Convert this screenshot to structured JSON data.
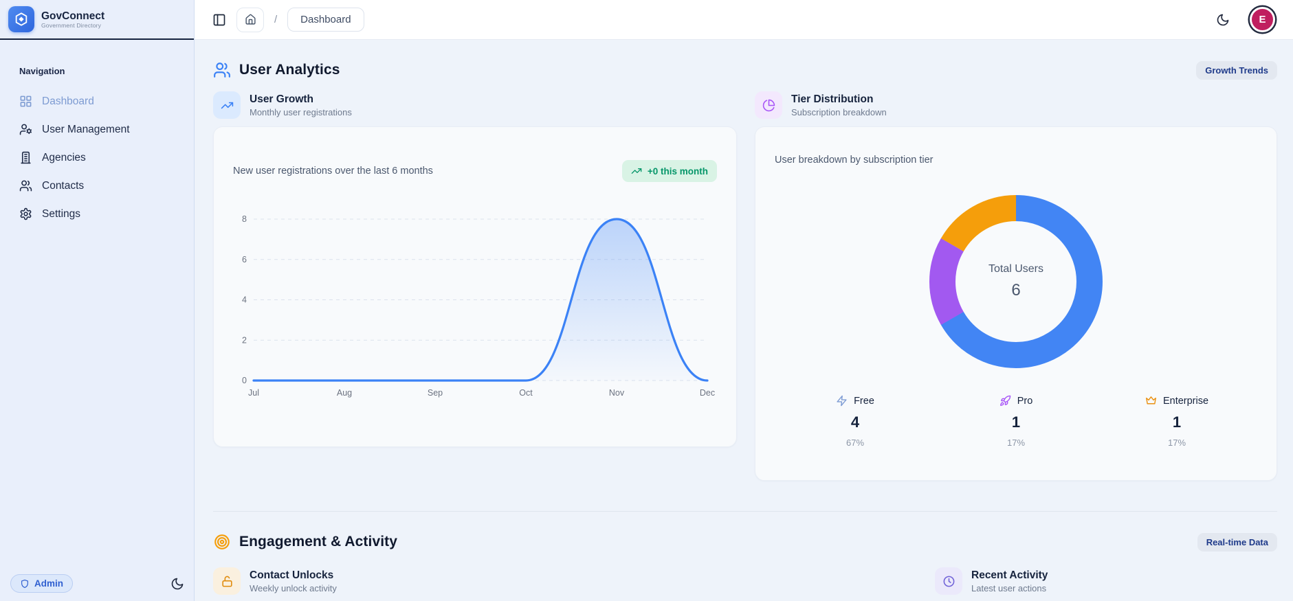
{
  "brand": {
    "name": "GovConnect",
    "tagline": "Government Directory"
  },
  "sidebar": {
    "nav_label": "Navigation",
    "items": [
      {
        "label": "Dashboard",
        "icon": "layout-grid",
        "active": true
      },
      {
        "label": "User Management",
        "icon": "user-cog",
        "active": false
      },
      {
        "label": "Agencies",
        "icon": "building",
        "active": false
      },
      {
        "label": "Contacts",
        "icon": "users",
        "active": false
      },
      {
        "label": "Settings",
        "icon": "gear",
        "active": false
      }
    ],
    "role_badge": "Admin"
  },
  "topbar": {
    "breadcrumb_current": "Dashboard",
    "avatar_initial": "E"
  },
  "analytics": {
    "title": "User Analytics",
    "badge": "Growth Trends",
    "user_growth": {
      "title": "User Growth",
      "subtitle": "Monthly user registrations",
      "description": "New user registrations over the last 6 months",
      "trend_badge": "+0 this month"
    },
    "tier_distribution": {
      "title": "Tier Distribution",
      "subtitle": "Subscription breakdown",
      "description": "User breakdown by subscription tier",
      "center_label": "Total Users",
      "center_value": "6",
      "tiers": [
        {
          "label": "Free",
          "value": "4",
          "percent": "67%",
          "icon": "zap",
          "icon_color": "#7e9cd4"
        },
        {
          "label": "Pro",
          "value": "1",
          "percent": "17%",
          "icon": "rocket",
          "icon_color": "#a855f7"
        },
        {
          "label": "Enterprise",
          "value": "1",
          "percent": "17%",
          "icon": "crown",
          "icon_color": "#ea9010"
        }
      ]
    }
  },
  "engagement": {
    "title": "Engagement & Activity",
    "badge": "Real-time Data",
    "contact_unlocks": {
      "title": "Contact Unlocks",
      "subtitle": "Weekly unlock activity"
    },
    "recent_activity": {
      "title": "Recent Activity",
      "subtitle": "Latest user actions"
    }
  },
  "chart_data": [
    {
      "type": "line",
      "title": "User Growth",
      "x": [
        "Jul",
        "Aug",
        "Sep",
        "Oct",
        "Nov",
        "Dec"
      ],
      "series": [
        {
          "name": "registrations",
          "values": [
            0,
            0,
            0,
            0,
            8,
            0
          ]
        }
      ],
      "ylim": [
        0,
        8
      ],
      "yticks": [
        0,
        2,
        4,
        6,
        8
      ],
      "grid": "dashed-horizontal",
      "line_color": "#3b82f6",
      "fill": "blue-gradient"
    },
    {
      "type": "pie",
      "donut": true,
      "title": "Tier Distribution",
      "labels": [
        "Free",
        "Pro",
        "Enterprise"
      ],
      "values": [
        4,
        1,
        1
      ],
      "percents": [
        67,
        17,
        17
      ],
      "colors": [
        "#4285f4",
        "#a259f0",
        "#f59e0b"
      ],
      "center_label": "Total Users",
      "center_value": 6
    }
  ]
}
